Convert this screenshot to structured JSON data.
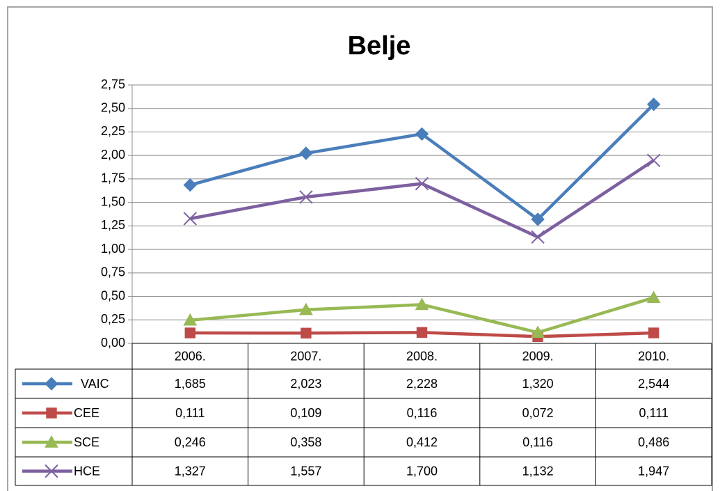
{
  "chart_data": {
    "type": "line",
    "title": "Belje",
    "categories": [
      "2006.",
      "2007.",
      "2008.",
      "2009.",
      "2010."
    ],
    "series": [
      {
        "name": "VAIC",
        "color": "#4a7ebb",
        "marker": "diamond",
        "values": [
          1.685,
          2.023,
          2.228,
          1.32,
          2.544
        ],
        "value_labels": [
          "1,685",
          "2,023",
          "2,228",
          "1,320",
          "2,544"
        ]
      },
      {
        "name": "CEE",
        "color": "#be4b48",
        "marker": "square",
        "values": [
          0.111,
          0.109,
          0.116,
          0.072,
          0.111
        ],
        "value_labels": [
          "0,111",
          "0,109",
          "0,116",
          "0,072",
          "0,111"
        ]
      },
      {
        "name": "SCE",
        "color": "#98b954",
        "marker": "triangle",
        "values": [
          0.246,
          0.358,
          0.412,
          0.116,
          0.486
        ],
        "value_labels": [
          "0,246",
          "0,358",
          "0,412",
          "0,116",
          "0,486"
        ]
      },
      {
        "name": "HCE",
        "color": "#7d60a0",
        "marker": "x",
        "values": [
          1.327,
          1.557,
          1.7,
          1.132,
          1.947
        ],
        "value_labels": [
          "1,327",
          "1,557",
          "1,700",
          "1,132",
          "1,947"
        ]
      }
    ],
    "ylim": [
      0,
      2.75
    ],
    "yticks": [
      {
        "value": 0,
        "label": "0,00"
      },
      {
        "value": 0.25,
        "label": "0,25"
      },
      {
        "value": 0.5,
        "label": "0,50"
      },
      {
        "value": 0.75,
        "label": "0,75"
      },
      {
        "value": 1,
        "label": "1,00"
      },
      {
        "value": 1.25,
        "label": "1,25"
      },
      {
        "value": 1.5,
        "label": "1,50"
      },
      {
        "value": 1.75,
        "label": "1,75"
      },
      {
        "value": 2,
        "label": "2,00"
      },
      {
        "value": 2.25,
        "label": "2,25"
      },
      {
        "value": 2.5,
        "label": "2,50"
      },
      {
        "value": 2.75,
        "label": "2,75"
      }
    ],
    "grid": true
  }
}
